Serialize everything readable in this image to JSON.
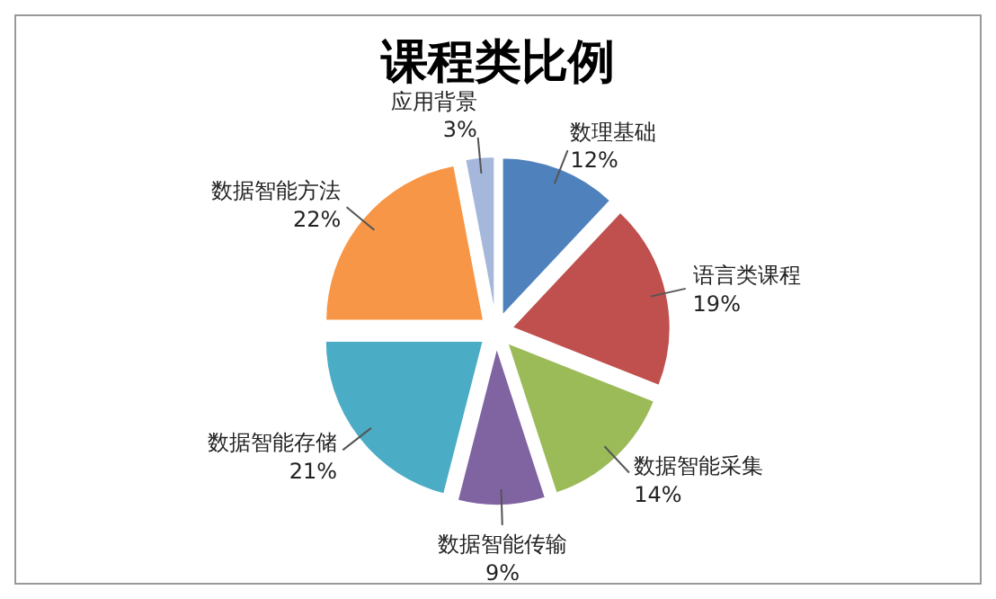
{
  "chart_data": {
    "type": "pie",
    "title": "课程类比例",
    "categories": [
      "数理基础",
      "语言类课程",
      "数据智能采集",
      "数据智能传输",
      "数据智能存储",
      "数据智能方法",
      "应用背景"
    ],
    "values": [
      12,
      19,
      14,
      9,
      21,
      22,
      3
    ],
    "value_labels": [
      "12%",
      "19%",
      "14%",
      "9%",
      "21%",
      "22%",
      "3%"
    ],
    "colors": [
      "#4f81bd",
      "#c0504d",
      "#9bbb59",
      "#8064a2",
      "#4bacc6",
      "#f79646",
      "#a5b8dc"
    ]
  }
}
